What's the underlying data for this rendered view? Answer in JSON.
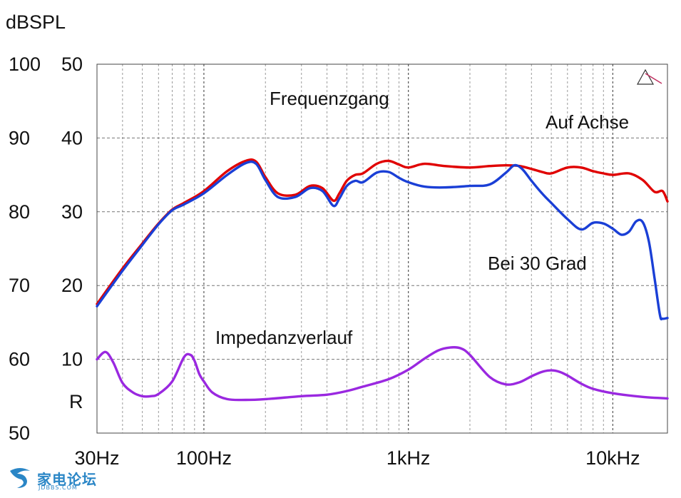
{
  "chart_data": {
    "type": "line",
    "ylabel": "dBSPL",
    "y_left_ticks": [
      "100",
      "90",
      "80",
      "70",
      "60",
      "50"
    ],
    "y_right_ticks": [
      "50",
      "40",
      "30",
      "20",
      "10"
    ],
    "impedance_axis_label": "R",
    "x_tick_labels": [
      "30Hz",
      "100Hz",
      "1kHz",
      "10kHz"
    ],
    "x_ticks_hz": [
      30,
      100,
      1000,
      10000
    ],
    "xlim": [
      30,
      18500
    ],
    "ylim": [
      50,
      100
    ],
    "impedance_ylim": [
      0,
      50
    ],
    "x_scale": "log",
    "grid": true,
    "annotations": {
      "response_title": "Frequenzgang",
      "impedance_title": "Impedanzverlauf",
      "on_axis": "Auf Achse",
      "off_axis": "Bei 30 Grad"
    },
    "series": [
      {
        "color": "#e00000",
        "label_key": "on_axis",
        "axis": "left",
        "x": [
          30,
          40,
          50,
          60,
          70,
          80,
          100,
          130,
          160,
          180,
          200,
          230,
          280,
          330,
          380,
          430,
          460,
          500,
          550,
          600,
          700,
          800,
          900,
          1000,
          1200,
          1500,
          2000,
          2500,
          3000,
          3500,
          4000,
          4500,
          5000,
          6000,
          7000,
          8000,
          9000,
          10000,
          12000,
          14000,
          16000,
          17500,
          18500
        ],
        "values": [
          67.5,
          72.3,
          75.7,
          78.4,
          80.3,
          81.2,
          82.8,
          85.5,
          86.9,
          86.8,
          84.7,
          82.5,
          82.3,
          83.5,
          83.2,
          81.5,
          82.5,
          84.2,
          85.0,
          85.2,
          86.5,
          86.9,
          86.4,
          86.0,
          86.5,
          86.2,
          86.0,
          86.2,
          86.3,
          86.2,
          85.8,
          85.4,
          85.2,
          86.0,
          86.0,
          85.5,
          85.2,
          85.0,
          85.2,
          84.3,
          82.7,
          82.8,
          81.4
        ]
      },
      {
        "color": "#1a3fd6",
        "label_key": "off_axis",
        "axis": "left",
        "x": [
          30,
          40,
          50,
          60,
          70,
          80,
          100,
          130,
          160,
          180,
          200,
          230,
          280,
          330,
          380,
          430,
          460,
          500,
          550,
          600,
          700,
          800,
          900,
          1000,
          1200,
          1500,
          2000,
          2500,
          3000,
          3300,
          3600,
          4000,
          4500,
          5000,
          6000,
          7000,
          8000,
          9000,
          10000,
          11000,
          12000,
          13000,
          14000,
          15000,
          16000,
          17000,
          17500,
          18500
        ],
        "values": [
          67.2,
          72.0,
          75.5,
          78.3,
          80.2,
          81.0,
          82.5,
          85.0,
          86.6,
          86.5,
          84.3,
          82.0,
          82.0,
          83.2,
          82.8,
          80.8,
          81.8,
          83.5,
          84.2,
          84.0,
          85.3,
          85.4,
          84.6,
          84.0,
          83.4,
          83.3,
          83.5,
          83.7,
          85.3,
          86.3,
          85.8,
          84.2,
          82.5,
          81.2,
          79.0,
          77.6,
          78.5,
          78.4,
          77.7,
          76.9,
          77.3,
          78.7,
          78.6,
          76.0,
          71.0,
          66.0,
          65.5,
          65.6
        ]
      },
      {
        "color": "#9a28e0",
        "label_key": "impedance_title",
        "axis": "right",
        "x": [
          30,
          33,
          36,
          40,
          45,
          50,
          55,
          60,
          70,
          80,
          86,
          90,
          95,
          100,
          110,
          130,
          160,
          200,
          300,
          400,
          500,
          600,
          800,
          1000,
          1200,
          1400,
          1600,
          1800,
          2000,
          2500,
          3000,
          3500,
          4000,
          4500,
          5000,
          5500,
          6000,
          7000,
          8000,
          10000,
          14000,
          18500
        ],
        "values": [
          10.0,
          11.0,
          9.6,
          6.8,
          5.5,
          5.0,
          5.0,
          5.3,
          7.0,
          10.3,
          10.6,
          9.8,
          8.0,
          7.0,
          5.5,
          4.6,
          4.5,
          4.6,
          5.0,
          5.2,
          5.7,
          6.3,
          7.3,
          8.6,
          10.1,
          11.2,
          11.6,
          11.5,
          10.6,
          7.6,
          6.6,
          6.9,
          7.7,
          8.3,
          8.5,
          8.3,
          7.8,
          6.7,
          6.0,
          5.4,
          4.9,
          4.7
        ]
      }
    ]
  },
  "watermark": {
    "text": "家电论坛",
    "sub": "JDBBS.COM"
  }
}
